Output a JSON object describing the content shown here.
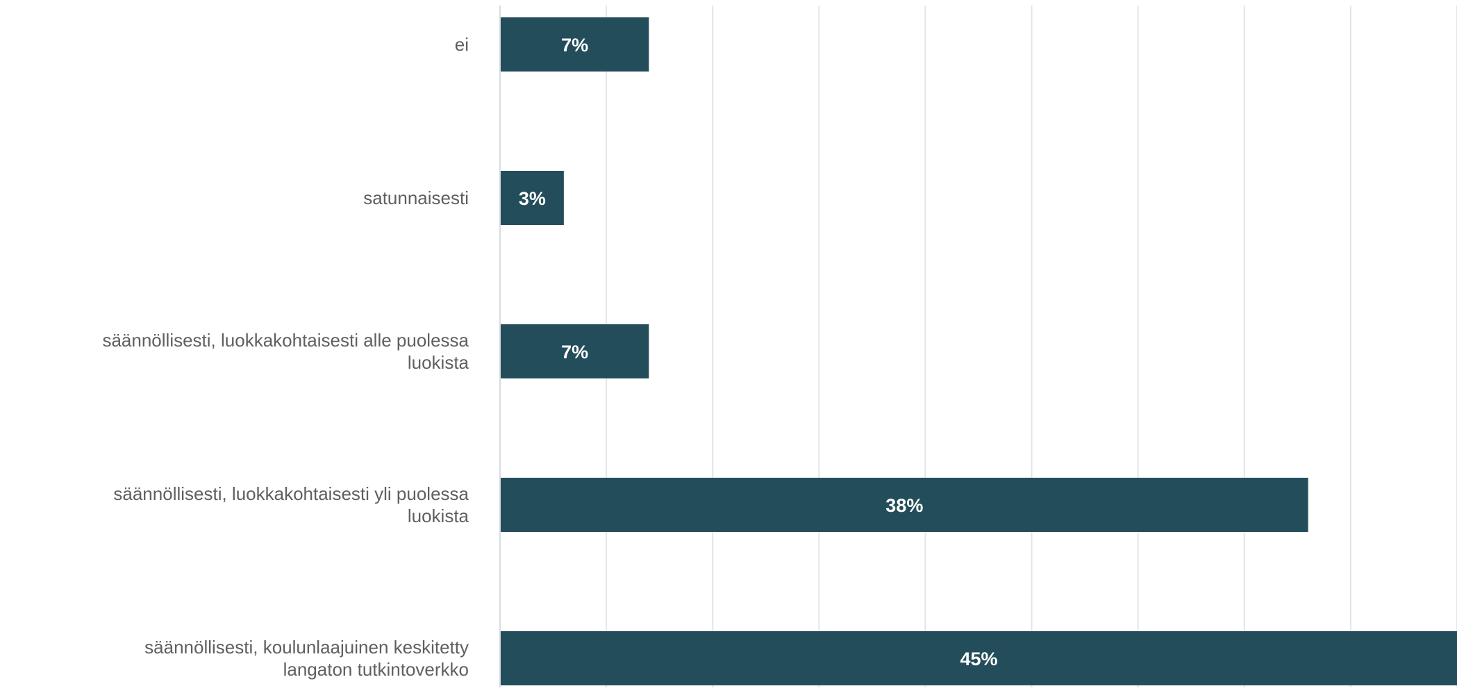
{
  "chart_data": {
    "type": "bar",
    "orientation": "horizontal",
    "categories": [
      "ei",
      "satunnaisesti",
      "säännöllisesti, luokkakohtaisesti alle puolessa luokista",
      "säännöllisesti, luokkakohtaisesti yli puolessa luokista",
      "säännöllisesti, koulunlaajuinen keskitetty langaton tutkintoverkko"
    ],
    "category_label_lines": [
      [
        "ei"
      ],
      [
        "satunnaisesti"
      ],
      [
        "säännöllisesti, luokkakohtaisesti alle puolessa",
        "luokista"
      ],
      [
        "säännöllisesti, luokkakohtaisesti yli puolessa",
        "luokista"
      ],
      [
        "säännöllisesti, koulunlaajuinen keskitetty",
        "langaton tutkintoverkko"
      ]
    ],
    "values": [
      7,
      3,
      7,
      38,
      45
    ],
    "data_labels": [
      "7%",
      "3%",
      "7%",
      "38%",
      "45%"
    ],
    "xlim": [
      0,
      45
    ],
    "x_gridline_step": 5,
    "grid": true,
    "legend": "none",
    "bar_color": "#244d5b",
    "grid_color": "#e3e5e8",
    "axis_color": "#d5dce3"
  }
}
